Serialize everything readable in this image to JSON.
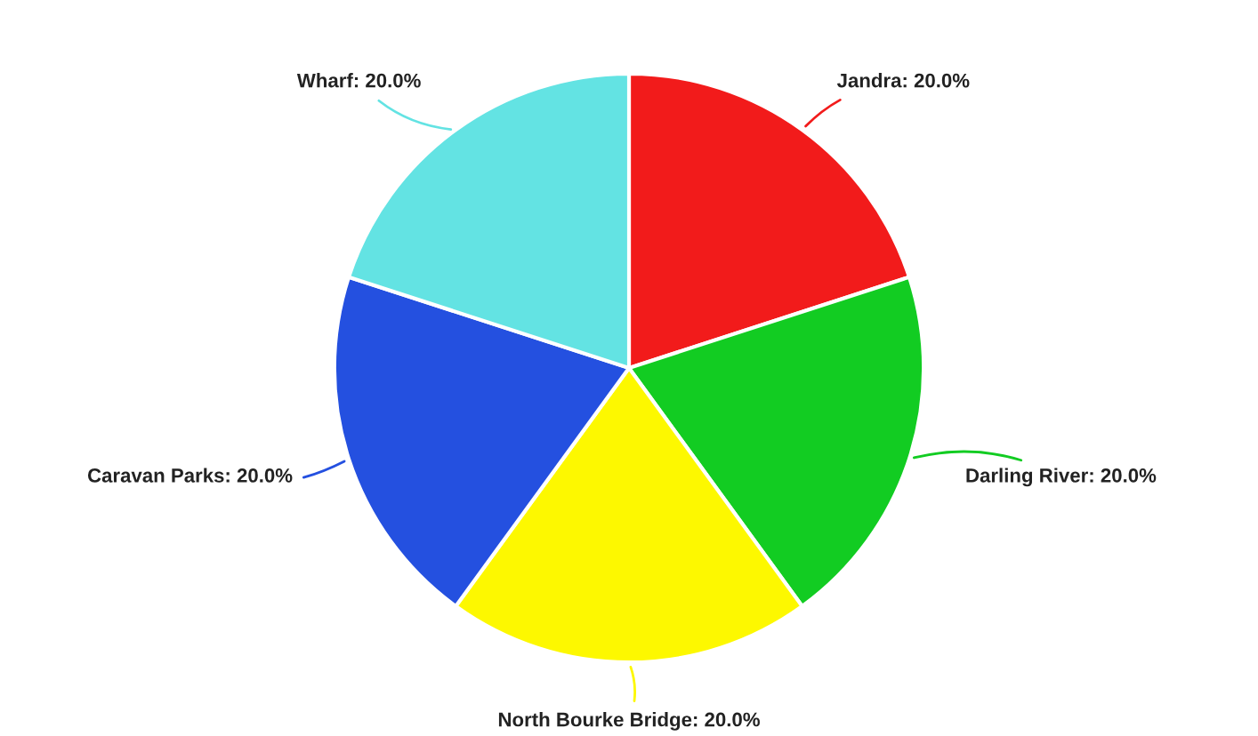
{
  "chart_data": {
    "type": "pie",
    "categories": [
      "Jandra",
      "Darling River",
      "North Bourke Bridge",
      "Caravan Parks",
      "Wharf"
    ],
    "values": [
      20,
      20,
      20,
      20,
      20
    ],
    "value_labels": [
      "20.0%",
      "20.0%",
      "20.0%",
      "20.0%",
      "20.0%"
    ],
    "colors": [
      "#f21b1b",
      "#12cc22",
      "#fdf800",
      "#2450e0",
      "#63e3e3"
    ],
    "legend": false
  }
}
